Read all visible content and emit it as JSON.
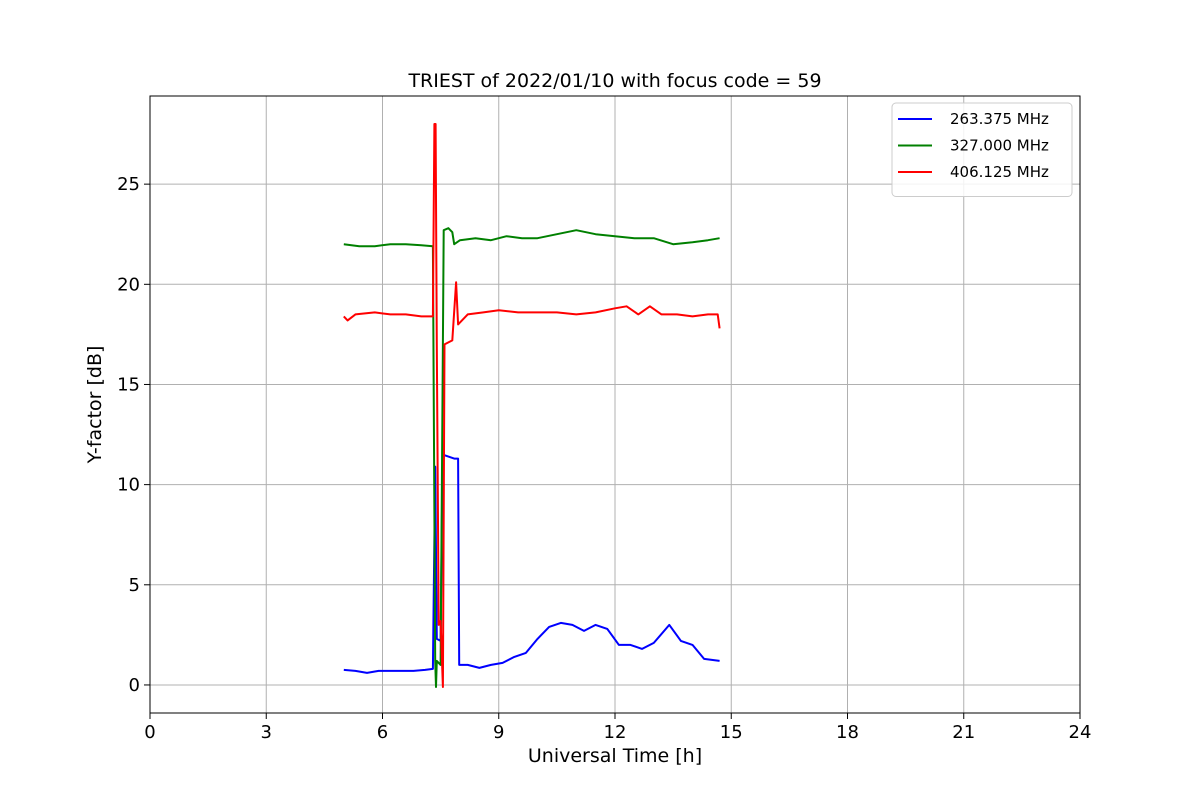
{
  "chart_data": {
    "type": "line",
    "title": "TRIEST of 2022/01/10 with focus code = 59",
    "xlabel": "Universal Time [h]",
    "ylabel": "Y-factor [dB]",
    "xlim": [
      0,
      24
    ],
    "ylim": [
      -1.4,
      29.4
    ],
    "xticks": [
      0,
      3,
      6,
      9,
      12,
      15,
      18,
      21,
      24
    ],
    "yticks": [
      0,
      5,
      10,
      15,
      20,
      25
    ],
    "grid": true,
    "legend_position": "top-right",
    "series": [
      {
        "name": "263.375 MHz",
        "color": "#0000ff",
        "points": [
          [
            5.0,
            0.75
          ],
          [
            5.3,
            0.7
          ],
          [
            5.6,
            0.6
          ],
          [
            5.9,
            0.7
          ],
          [
            6.2,
            0.7
          ],
          [
            6.5,
            0.7
          ],
          [
            6.8,
            0.7
          ],
          [
            7.1,
            0.75
          ],
          [
            7.3,
            0.8
          ],
          [
            7.36,
            10.9
          ],
          [
            7.4,
            2.3
          ],
          [
            7.5,
            2.2
          ],
          [
            7.55,
            11.5
          ],
          [
            7.7,
            11.4
          ],
          [
            7.85,
            11.3
          ],
          [
            7.95,
            11.3
          ],
          [
            7.98,
            1.0
          ],
          [
            8.2,
            1.0
          ],
          [
            8.5,
            0.85
          ],
          [
            8.8,
            1.0
          ],
          [
            9.1,
            1.1
          ],
          [
            9.4,
            1.4
          ],
          [
            9.7,
            1.6
          ],
          [
            10.0,
            2.3
          ],
          [
            10.3,
            2.9
          ],
          [
            10.6,
            3.1
          ],
          [
            10.9,
            3.0
          ],
          [
            11.2,
            2.7
          ],
          [
            11.5,
            3.0
          ],
          [
            11.8,
            2.8
          ],
          [
            12.1,
            2.0
          ],
          [
            12.4,
            2.0
          ],
          [
            12.7,
            1.8
          ],
          [
            13.0,
            2.1
          ],
          [
            13.4,
            3.0
          ],
          [
            13.7,
            2.2
          ],
          [
            14.0,
            2.0
          ],
          [
            14.3,
            1.3
          ],
          [
            14.7,
            1.2
          ]
        ]
      },
      {
        "name": "327.000 MHz",
        "color": "#008000",
        "points": [
          [
            5.0,
            22.0
          ],
          [
            5.4,
            21.9
          ],
          [
            5.8,
            21.9
          ],
          [
            6.2,
            22.0
          ],
          [
            6.6,
            22.0
          ],
          [
            7.0,
            21.95
          ],
          [
            7.3,
            21.9
          ],
          [
            7.36,
            1.2
          ],
          [
            7.38,
            -0.1
          ],
          [
            7.4,
            1.2
          ],
          [
            7.5,
            1.0
          ],
          [
            7.58,
            22.7
          ],
          [
            7.7,
            22.8
          ],
          [
            7.8,
            22.6
          ],
          [
            7.85,
            22.0
          ],
          [
            8.0,
            22.2
          ],
          [
            8.4,
            22.3
          ],
          [
            8.8,
            22.2
          ],
          [
            9.2,
            22.4
          ],
          [
            9.6,
            22.3
          ],
          [
            10.0,
            22.3
          ],
          [
            10.5,
            22.5
          ],
          [
            11.0,
            22.7
          ],
          [
            11.5,
            22.5
          ],
          [
            12.0,
            22.4
          ],
          [
            12.5,
            22.3
          ],
          [
            13.0,
            22.3
          ],
          [
            13.5,
            22.0
          ],
          [
            14.0,
            22.1
          ],
          [
            14.4,
            22.2
          ],
          [
            14.7,
            22.3
          ]
        ]
      },
      {
        "name": "406.125 MHz",
        "color": "#ff0000",
        "points": [
          [
            5.0,
            18.4
          ],
          [
            5.1,
            18.2
          ],
          [
            5.3,
            18.5
          ],
          [
            5.8,
            18.6
          ],
          [
            6.2,
            18.5
          ],
          [
            6.6,
            18.5
          ],
          [
            7.0,
            18.4
          ],
          [
            7.3,
            18.4
          ],
          [
            7.34,
            28.0
          ],
          [
            7.37,
            28.0
          ],
          [
            7.4,
            17.0
          ],
          [
            7.45,
            3.0
          ],
          [
            7.5,
            3.2
          ],
          [
            7.56,
            -0.1
          ],
          [
            7.6,
            17.0
          ],
          [
            7.8,
            17.2
          ],
          [
            7.9,
            20.1
          ],
          [
            7.95,
            18.0
          ],
          [
            8.2,
            18.5
          ],
          [
            8.6,
            18.6
          ],
          [
            9.0,
            18.7
          ],
          [
            9.5,
            18.6
          ],
          [
            10.0,
            18.6
          ],
          [
            10.5,
            18.6
          ],
          [
            11.0,
            18.5
          ],
          [
            11.5,
            18.6
          ],
          [
            12.0,
            18.8
          ],
          [
            12.3,
            18.9
          ],
          [
            12.6,
            18.5
          ],
          [
            12.9,
            18.9
          ],
          [
            13.2,
            18.5
          ],
          [
            13.6,
            18.5
          ],
          [
            14.0,
            18.4
          ],
          [
            14.4,
            18.5
          ],
          [
            14.65,
            18.5
          ],
          [
            14.7,
            17.8
          ]
        ]
      }
    ]
  }
}
